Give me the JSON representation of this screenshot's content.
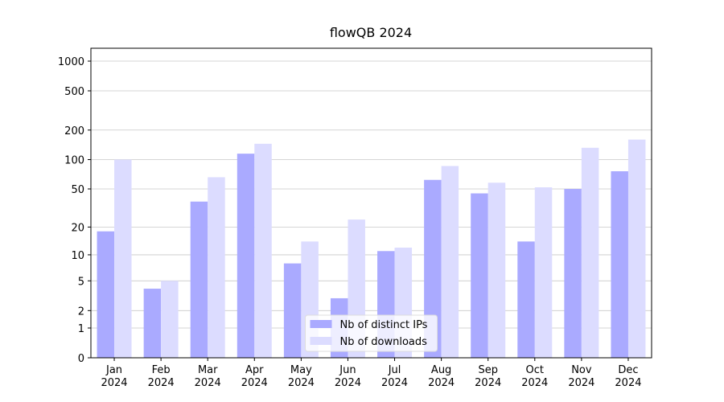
{
  "chart_data": {
    "type": "bar",
    "title": "flowQB 2024",
    "categories": [
      "Jan\n2024",
      "Feb\n2024",
      "Mar\n2024",
      "Apr\n2024",
      "May\n2024",
      "Jun\n2024",
      "Jul\n2024",
      "Aug\n2024",
      "Sep\n2024",
      "Oct\n2024",
      "Nov\n2024",
      "Dec\n2024"
    ],
    "series": [
      {
        "name": "Nb of distinct IPs",
        "color": "#aaaaff",
        "values": [
          18,
          4,
          37,
          115,
          8,
          3,
          11,
          62,
          45,
          14,
          50,
          76
        ]
      },
      {
        "name": "Nb of downloads",
        "color": "#dcdcff",
        "values": [
          100,
          5,
          66,
          145,
          14,
          24,
          12,
          86,
          58,
          52,
          132,
          160
        ]
      }
    ],
    "yscale": "log1p",
    "ylim": [
      0,
      1350
    ],
    "yticks": [
      0,
      1,
      2,
      5,
      10,
      20,
      50,
      100,
      200,
      500,
      1000
    ],
    "grid": true,
    "legend": "lower center"
  }
}
